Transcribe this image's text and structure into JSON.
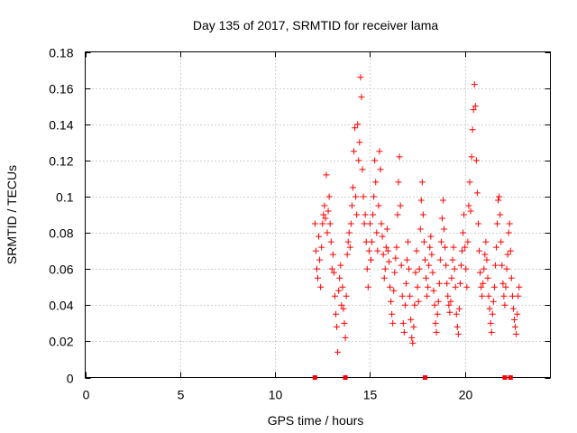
{
  "chart_data": {
    "type": "scatter",
    "title": "Day 135 of 2017, SRMTID for receiver lama",
    "xlabel": "GPS time / hours",
    "ylabel": "SRMTID / TECUs",
    "xlim": [
      0,
      24.5
    ],
    "ylim": [
      0,
      0.18
    ],
    "x_ticks": [
      0,
      5,
      10,
      15,
      20
    ],
    "x_tick_labels": [
      "0",
      "5",
      "10",
      "15",
      "20"
    ],
    "y_ticks": [
      0,
      0.02,
      0.04,
      0.06,
      0.08,
      0.1,
      0.12,
      0.14,
      0.16,
      0.18
    ],
    "y_tick_labels": [
      "0",
      "0.02",
      "0.04",
      "0.06",
      "0.08",
      "0.1",
      "0.12",
      "0.14",
      "0.16",
      "0.18"
    ],
    "grid": true,
    "marker": "+",
    "marker_color": "#ff0000",
    "series": [
      {
        "name": "SRMTID",
        "points": [
          [
            12.1,
            0.085
          ],
          [
            12.15,
            0.07
          ],
          [
            12.2,
            0.06
          ],
          [
            12.25,
            0.055
          ],
          [
            12.3,
            0.078
          ],
          [
            12.35,
            0.065
          ],
          [
            12.4,
            0.05
          ],
          [
            12.45,
            0.072
          ],
          [
            12.5,
            0.085
          ],
          [
            12.55,
            0.09
          ],
          [
            12.6,
            0.095
          ],
          [
            12.65,
            0.088
          ],
          [
            12.7,
            0.112
          ],
          [
            12.75,
            0.08
          ],
          [
            12.8,
            0.092
          ],
          [
            12.85,
            0.1
          ],
          [
            12.9,
            0.085
          ],
          [
            12.95,
            0.075
          ],
          [
            13.0,
            0.06
          ],
          [
            13.05,
            0.068
          ],
          [
            13.1,
            0.058
          ],
          [
            13.15,
            0.045
          ],
          [
            13.2,
            0.035
          ],
          [
            13.25,
            0.028
          ],
          [
            13.3,
            0.014
          ],
          [
            13.35,
            0.048
          ],
          [
            13.4,
            0.055
          ],
          [
            13.45,
            0.062
          ],
          [
            13.5,
            0.04
          ],
          [
            13.55,
            0.05
          ],
          [
            13.6,
            0.038
          ],
          [
            13.65,
            0.03
          ],
          [
            13.7,
            0.022
          ],
          [
            13.75,
            0.045
          ],
          [
            13.8,
            0.068
          ],
          [
            13.85,
            0.075
          ],
          [
            13.9,
            0.08
          ],
          [
            13.95,
            0.072
          ],
          [
            14.0,
            0.085
          ],
          [
            14.05,
            0.095
          ],
          [
            14.1,
            0.105
          ],
          [
            14.15,
            0.125
          ],
          [
            14.2,
            0.138
          ],
          [
            14.25,
            0.1
          ],
          [
            14.3,
            0.09
          ],
          [
            14.35,
            0.14
          ],
          [
            14.4,
            0.12
          ],
          [
            14.45,
            0.13
          ],
          [
            14.5,
            0.166
          ],
          [
            14.55,
            0.155
          ],
          [
            14.6,
            0.115
          ],
          [
            14.65,
            0.1
          ],
          [
            14.7,
            0.085
          ],
          [
            14.75,
            0.09
          ],
          [
            14.8,
            0.075
          ],
          [
            14.85,
            0.06
          ],
          [
            14.9,
            0.05
          ],
          [
            14.95,
            0.07
          ],
          [
            15.0,
            0.085
          ],
          [
            15.05,
            0.065
          ],
          [
            15.1,
            0.075
          ],
          [
            15.15,
            0.09
          ],
          [
            15.2,
            0.1
          ],
          [
            15.25,
            0.12
          ],
          [
            15.3,
            0.108
          ],
          [
            15.35,
            0.08
          ],
          [
            15.4,
            0.07
          ],
          [
            15.45,
            0.095
          ],
          [
            15.5,
            0.125
          ],
          [
            15.55,
            0.115
          ],
          [
            15.6,
            0.085
          ],
          [
            15.65,
            0.078
          ],
          [
            15.7,
            0.068
          ],
          [
            15.75,
            0.055
          ],
          [
            15.8,
            0.06
          ],
          [
            15.85,
            0.072
          ],
          [
            15.9,
            0.082
          ],
          [
            15.95,
            0.07
          ],
          [
            16.0,
            0.064
          ],
          [
            16.05,
            0.05
          ],
          [
            16.1,
            0.042
          ],
          [
            16.15,
            0.035
          ],
          [
            16.2,
            0.03
          ],
          [
            16.25,
            0.048
          ],
          [
            16.3,
            0.058
          ],
          [
            16.35,
            0.066
          ],
          [
            16.4,
            0.072
          ],
          [
            16.45,
            0.09
          ],
          [
            16.5,
            0.108
          ],
          [
            16.55,
            0.122
          ],
          [
            16.6,
            0.095
          ],
          [
            16.65,
            0.062
          ],
          [
            16.7,
            0.045
          ],
          [
            16.75,
            0.03
          ],
          [
            16.8,
            0.025
          ],
          [
            16.85,
            0.04
          ],
          [
            16.9,
            0.052
          ],
          [
            16.95,
            0.065
          ],
          [
            17.0,
            0.075
          ],
          [
            17.05,
            0.06
          ],
          [
            17.1,
            0.045
          ],
          [
            17.15,
            0.032
          ],
          [
            17.2,
            0.022
          ],
          [
            17.25,
            0.019
          ],
          [
            17.3,
            0.028
          ],
          [
            17.35,
            0.04
          ],
          [
            17.4,
            0.058
          ],
          [
            17.45,
            0.07
          ],
          [
            17.5,
            0.05
          ],
          [
            17.55,
            0.042
          ],
          [
            17.6,
            0.06
          ],
          [
            17.65,
            0.082
          ],
          [
            17.7,
            0.098
          ],
          [
            17.75,
            0.108
          ],
          [
            17.8,
            0.09
          ],
          [
            17.85,
            0.075
          ],
          [
            17.9,
            0.065
          ],
          [
            17.95,
            0.055
          ],
          [
            18.0,
            0.045
          ],
          [
            18.05,
            0.05
          ],
          [
            18.1,
            0.062
          ],
          [
            18.15,
            0.072
          ],
          [
            18.2,
            0.078
          ],
          [
            18.25,
            0.068
          ],
          [
            18.3,
            0.058
          ],
          [
            18.35,
            0.048
          ],
          [
            18.4,
            0.04
          ],
          [
            18.45,
            0.03
          ],
          [
            18.5,
            0.025
          ],
          [
            18.55,
            0.035
          ],
          [
            18.6,
            0.042
          ],
          [
            18.65,
            0.052
          ],
          [
            18.7,
            0.065
          ],
          [
            18.75,
            0.075
          ],
          [
            18.8,
            0.088
          ],
          [
            18.85,
            0.098
          ],
          [
            18.9,
            0.082
          ],
          [
            18.95,
            0.072
          ],
          [
            19.0,
            0.062
          ],
          [
            19.05,
            0.052
          ],
          [
            19.1,
            0.045
          ],
          [
            19.15,
            0.04
          ],
          [
            19.2,
            0.036
          ],
          [
            19.25,
            0.042
          ],
          [
            19.3,
            0.055
          ],
          [
            19.35,
            0.065
          ],
          [
            19.4,
            0.072
          ],
          [
            19.45,
            0.06
          ],
          [
            19.5,
            0.05
          ],
          [
            19.55,
            0.035
          ],
          [
            19.6,
            0.028
          ],
          [
            19.65,
            0.024
          ],
          [
            19.7,
            0.038
          ],
          [
            19.75,
            0.052
          ],
          [
            19.8,
            0.062
          ],
          [
            19.85,
            0.07
          ],
          [
            19.9,
            0.08
          ],
          [
            19.95,
            0.09
          ],
          [
            20.0,
            0.072
          ],
          [
            20.05,
            0.06
          ],
          [
            20.1,
            0.05
          ],
          [
            20.15,
            0.075
          ],
          [
            20.2,
            0.095
          ],
          [
            20.25,
            0.108
          ],
          [
            20.3,
            0.092
          ],
          [
            20.35,
            0.122
          ],
          [
            20.4,
            0.137
          ],
          [
            20.45,
            0.148
          ],
          [
            20.5,
            0.162
          ],
          [
            20.55,
            0.15
          ],
          [
            20.6,
            0.12
          ],
          [
            20.65,
            0.102
          ],
          [
            20.7,
            0.085
          ],
          [
            20.75,
            0.07
          ],
          [
            20.8,
            0.058
          ],
          [
            20.85,
            0.05
          ],
          [
            20.9,
            0.045
          ],
          [
            20.95,
            0.052
          ],
          [
            21.0,
            0.06
          ],
          [
            21.05,
            0.068
          ],
          [
            21.1,
            0.075
          ],
          [
            21.15,
            0.065
          ],
          [
            21.2,
            0.055
          ],
          [
            21.25,
            0.045
          ],
          [
            21.3,
            0.038
          ],
          [
            21.35,
            0.03
          ],
          [
            21.4,
            0.025
          ],
          [
            21.45,
            0.035
          ],
          [
            21.5,
            0.042
          ],
          [
            21.55,
            0.05
          ],
          [
            21.6,
            0.062
          ],
          [
            21.65,
            0.072
          ],
          [
            21.7,
            0.085
          ],
          [
            21.75,
            0.098
          ],
          [
            21.8,
            0.1
          ],
          [
            21.85,
            0.09
          ],
          [
            21.9,
            0.075
          ],
          [
            21.95,
            0.062
          ],
          [
            22.0,
            0.052
          ],
          [
            22.05,
            0.045
          ],
          [
            22.1,
            0.04
          ],
          [
            22.15,
            0.05
          ],
          [
            22.2,
            0.06
          ],
          [
            22.25,
            0.068
          ],
          [
            22.3,
            0.08
          ],
          [
            22.35,
            0.085
          ],
          [
            22.4,
            0.07
          ],
          [
            22.45,
            0.055
          ],
          [
            22.5,
            0.045
          ],
          [
            22.55,
            0.038
          ],
          [
            22.6,
            0.032
          ],
          [
            22.65,
            0.028
          ],
          [
            22.7,
            0.024
          ],
          [
            22.75,
            0.035
          ],
          [
            22.8,
            0.045
          ],
          [
            22.85,
            0.05
          ]
        ]
      }
    ],
    "axis_markers": {
      "x": [
        12.1,
        13.7,
        17.9,
        22.1,
        22.4
      ],
      "y": 0
    }
  }
}
